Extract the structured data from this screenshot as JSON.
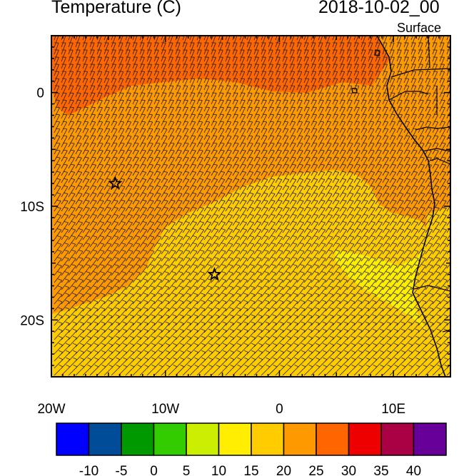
{
  "header": {
    "title": "Temperature (C)",
    "timestamp": "2018-10-02_00",
    "level": "Surface"
  },
  "map": {
    "lon_range": [
      -20,
      15
    ],
    "lat_range": [
      -25,
      5
    ],
    "lon_ticks": [
      {
        "value": -20,
        "label": "20W"
      },
      {
        "value": -10,
        "label": "10W"
      },
      {
        "value": 0,
        "label": "0"
      },
      {
        "value": 10,
        "label": "10E"
      }
    ],
    "lat_ticks": [
      {
        "value": 0,
        "label": "0"
      },
      {
        "value": -10,
        "label": "10S"
      },
      {
        "value": -20,
        "label": "20S"
      }
    ],
    "markers": [
      {
        "name": "star",
        "lon": -14.4,
        "lat": -8.0
      },
      {
        "name": "star",
        "lon": -5.7,
        "lat": -16.0
      }
    ]
  },
  "colorbar": {
    "colors": [
      "#0000ff",
      "#004c99",
      "#009900",
      "#33cc00",
      "#ccee00",
      "#ffee00",
      "#ffcc00",
      "#ff9900",
      "#ff6600",
      "#ee0000",
      "#aa0044",
      "#660099"
    ],
    "labels": [
      "-10",
      "-5",
      "0",
      "5",
      "10",
      "15",
      "20",
      "25",
      "30",
      "35",
      "40"
    ]
  }
}
